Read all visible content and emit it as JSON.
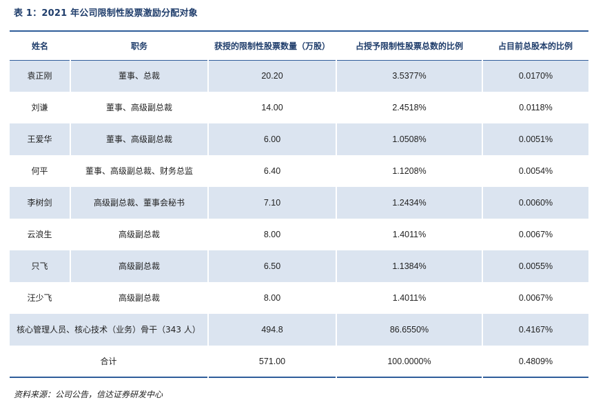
{
  "title": "表 1：2021 年公司限制性股票激励分配对象",
  "headers": [
    "姓名",
    "职务",
    "获授的限制性股票数量（万股）",
    "占授予限制性股票总数的比例",
    "占目前总股本的比例"
  ],
  "rows": [
    {
      "name": "袁正刚",
      "position": "董事、总裁",
      "shares": "20.20",
      "ratio_grant": "3.5377%",
      "ratio_total": "0.0170%"
    },
    {
      "name": "刘谦",
      "position": "董事、高级副总裁",
      "shares": "14.00",
      "ratio_grant": "2.4518%",
      "ratio_total": "0.0118%"
    },
    {
      "name": "王爱华",
      "position": "董事、高级副总裁",
      "shares": "6.00",
      "ratio_grant": "1.0508%",
      "ratio_total": "0.0051%"
    },
    {
      "name": "何平",
      "position": "董事、高级副总裁、财务总监",
      "shares": "6.40",
      "ratio_grant": "1.1208%",
      "ratio_total": "0.0054%"
    },
    {
      "name": "李树剑",
      "position": "高级副总裁、董事会秘书",
      "shares": "7.10",
      "ratio_grant": "1.2434%",
      "ratio_total": "0.0060%"
    },
    {
      "name": "云浪生",
      "position": "高级副总裁",
      "shares": "8.00",
      "ratio_grant": "1.4011%",
      "ratio_total": "0.0067%"
    },
    {
      "name": "只飞",
      "position": "高级副总裁",
      "shares": "6.50",
      "ratio_grant": "1.1384%",
      "ratio_total": "0.0055%"
    },
    {
      "name": "汪少飞",
      "position": "高级副总裁",
      "shares": "8.00",
      "ratio_grant": "1.4011%",
      "ratio_total": "0.0067%"
    }
  ],
  "core": {
    "label": "核心管理人员、核心技术（业务）骨干（343 人）",
    "shares": "494.8",
    "ratio_grant": "86.6550%",
    "ratio_total": "0.4167%"
  },
  "total": {
    "label": "合计",
    "shares": "571.00",
    "ratio_grant": "100.0000%",
    "ratio_total": "0.4809%"
  },
  "source": "资料来源：公司公告，信达证券研发中心"
}
